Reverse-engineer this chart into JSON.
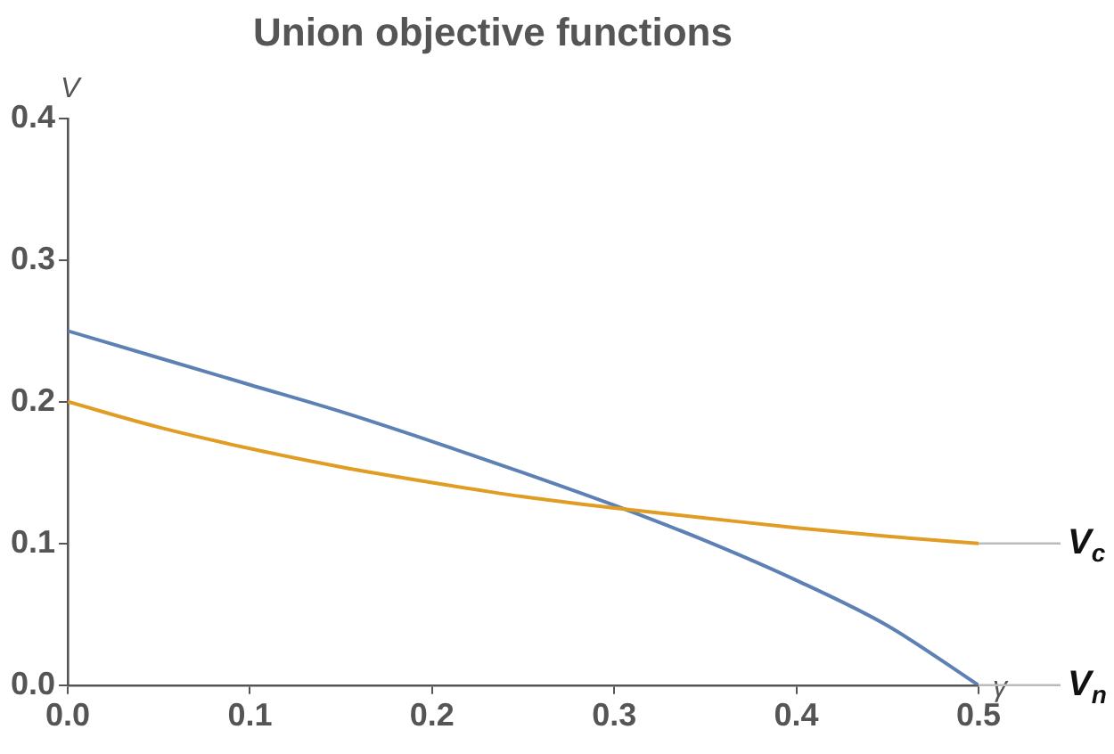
{
  "chart_data": {
    "type": "line",
    "title": "Union objective functions",
    "xlabel": "γ",
    "ylabel": "V",
    "x": [
      0,
      0.05,
      0.1,
      0.15,
      0.2,
      0.25,
      0.3,
      0.35,
      0.4,
      0.45,
      0.5
    ],
    "series": [
      {
        "name": "V$_{c}$",
        "color": "#e19c24",
        "values": [
          0.2,
          0.182,
          0.167,
          0.154,
          0.143,
          0.133,
          0.125,
          0.118,
          0.111,
          0.105,
          0.1
        ]
      },
      {
        "name": "V$_{n}$",
        "color": "#5e81b5",
        "values": [
          0.25,
          0.231,
          0.212,
          0.193,
          0.172,
          0.15,
          0.127,
          0.102,
          0.074,
          0.042,
          0
        ]
      }
    ],
    "xlim": [
      0,
      0.5
    ],
    "xticks": [
      {
        "value": 0,
        "label": "0.0"
      },
      0.1,
      0.2,
      0.3,
      0.4,
      0.5
    ],
    "ylim": [
      0,
      0.4
    ],
    "yticks": [
      {
        "value": 0,
        "label": "0.0"
      },
      0.1,
      0.2,
      0.3,
      0.4
    ],
    "grid": false,
    "legend": false,
    "marker": "none",
    "line_style": "solid"
  }
}
